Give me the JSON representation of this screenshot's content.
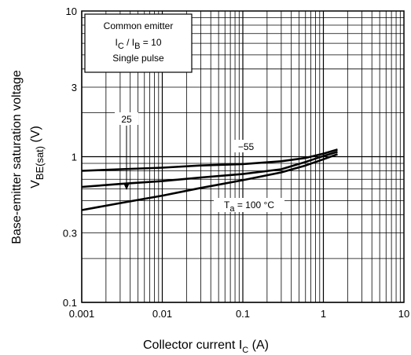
{
  "chart_data": {
    "type": "line",
    "xscale": "log",
    "yscale": "log",
    "xlim": [
      0.001,
      10
    ],
    "ylim": [
      0.1,
      10
    ],
    "grid": true,
    "xlabel": {
      "main": "Collector current   I",
      "sub": "C",
      "unit": "(A)"
    },
    "ylabel": {
      "line1": "Base-emitter saturation voltage",
      "line2_main": "V",
      "line2_sub": "BE(sat)",
      "line2_unit": "(V)"
    },
    "x_ticks": [
      {
        "value": 0.001,
        "label": "0.001"
      },
      {
        "value": 0.01,
        "label": "0.01"
      },
      {
        "value": 0.1,
        "label": "0.1"
      },
      {
        "value": 1,
        "label": "1"
      },
      {
        "value": 10,
        "label": "10"
      }
    ],
    "y_ticks": [
      {
        "value": 0.1,
        "label": "0.1"
      },
      {
        "value": 0.3,
        "label": "0.3"
      },
      {
        "value": 1,
        "label": "1"
      },
      {
        "value": 3,
        "label": "3"
      },
      {
        "value": 10,
        "label": "10"
      }
    ],
    "conditions": {
      "line1": "Common emitter",
      "line2_a": "I",
      "line2_a_sub": "C",
      "line2_b": " / I",
      "line2_b_sub": "B",
      "line2_c": " = 10",
      "line3": "Single pulse"
    },
    "series": [
      {
        "name": "−55",
        "x": [
          0.001,
          0.003,
          0.01,
          0.03,
          0.1,
          0.3,
          0.6,
          1.0,
          1.5
        ],
        "y": [
          0.8,
          0.82,
          0.84,
          0.87,
          0.89,
          0.93,
          0.98,
          1.05,
          1.12
        ]
      },
      {
        "name": "25",
        "x": [
          0.001,
          0.003,
          0.01,
          0.03,
          0.1,
          0.3,
          0.6,
          1.0,
          1.5
        ],
        "y": [
          0.62,
          0.65,
          0.68,
          0.72,
          0.76,
          0.82,
          0.92,
          1.01,
          1.08
        ]
      },
      {
        "name": "T",
        "label_sub": "a",
        "label_rest": " = 100 °C",
        "x": [
          0.001,
          0.003,
          0.01,
          0.03,
          0.1,
          0.3,
          0.6,
          1.0,
          1.5
        ],
        "y": [
          0.43,
          0.48,
          0.54,
          0.61,
          0.69,
          0.78,
          0.87,
          0.96,
          1.04
        ]
      }
    ]
  }
}
